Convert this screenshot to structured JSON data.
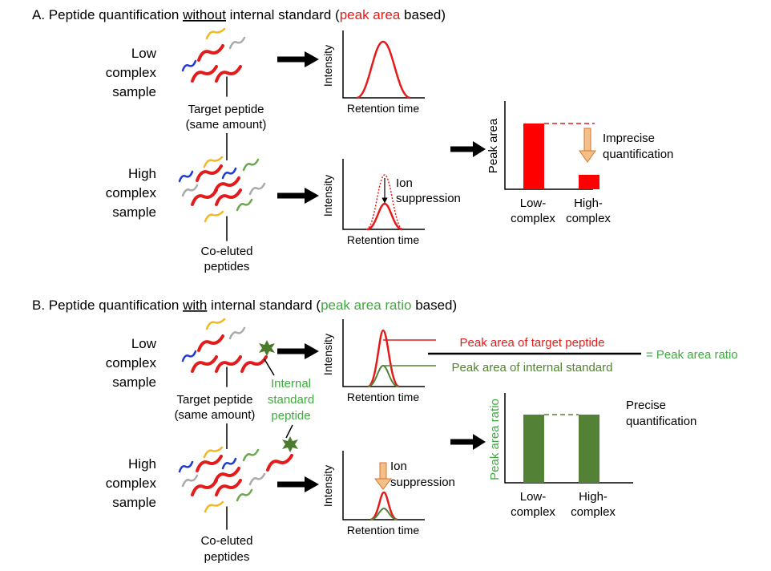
{
  "section_a": {
    "title_prefix": "A. Peptide quantification ",
    "title_underlined": "without",
    "title_mid": " internal standard (",
    "title_highlight": "peak area",
    "title_suffix": " based)",
    "low_sample": [
      "Low",
      "complex",
      "sample"
    ],
    "high_sample": [
      "High",
      "complex",
      "sample"
    ],
    "target_peptide": [
      "Target peptide",
      "(same amount)"
    ],
    "coeluted": [
      "Co-eluted",
      "peptides"
    ],
    "intensity_label": "Intensity",
    "retention_label": "Retention time",
    "ion_suppression": [
      "Ion",
      "suppression"
    ],
    "result_ylabel": "Peak area",
    "result_note": [
      "Imprecise",
      "quantification"
    ],
    "result_categories": [
      [
        "Low-",
        "complex"
      ],
      [
        "High-",
        "complex"
      ]
    ],
    "colors": {
      "highlight": "#e41b1b",
      "bar": "#ff0000",
      "arrow": "#e8913a"
    }
  },
  "section_b": {
    "title_prefix": "B. Peptide quantification ",
    "title_underlined": "with",
    "title_mid": " internal standard (",
    "title_highlight": "peak area ratio",
    "title_suffix": " based)",
    "low_sample": [
      "Low",
      "complex",
      "sample"
    ],
    "high_sample": [
      "High",
      "complex",
      "sample"
    ],
    "target_peptide": [
      "Target peptide",
      "(same amount)"
    ],
    "internal_standard": [
      "Internal",
      "standard",
      "peptide"
    ],
    "coeluted": [
      "Co-eluted",
      "peptides"
    ],
    "intensity_label": "Intensity",
    "retention_label": "Retention time",
    "ion_suppression": [
      "Ion",
      "suppression"
    ],
    "ratio_numerator": "Peak area of target peptide",
    "ratio_denominator": "Peak area of internal standard",
    "ratio_result": "= Peak area ratio",
    "result_ylabel": "Peak area ratio",
    "result_note": [
      "Precise",
      "quantification"
    ],
    "result_categories": [
      [
        "Low-",
        "complex"
      ],
      [
        "High-",
        "complex"
      ]
    ],
    "colors": {
      "highlight": "#3faa3f",
      "bar": "#538135",
      "standard_star": "#4a7a2c"
    }
  },
  "chart_data": [
    {
      "type": "bar",
      "title": "",
      "ylabel": "Peak area",
      "categories": [
        "Low-complex",
        "High-complex"
      ],
      "values": [
        1.0,
        0.22
      ]
    },
    {
      "type": "bar",
      "title": "",
      "ylabel": "Peak area ratio",
      "categories": [
        "Low-complex",
        "High-complex"
      ],
      "values": [
        1.0,
        1.0
      ]
    }
  ]
}
